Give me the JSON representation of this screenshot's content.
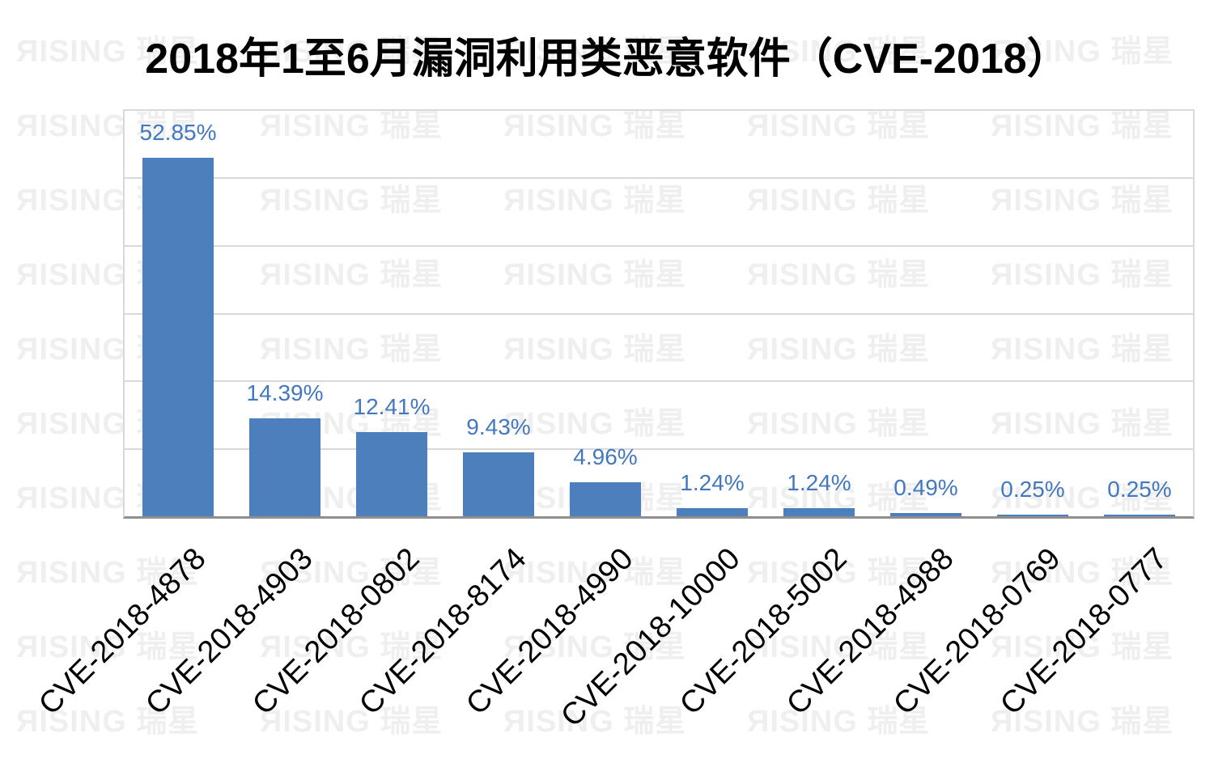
{
  "title": "2018年1至6月漏洞利用类恶意软件（CVE-2018）",
  "watermark": {
    "text": "ЯISING 瑞星",
    "color": "#efefef"
  },
  "chart_data": {
    "type": "bar",
    "title": "2018年1至6月漏洞利用类恶意软件（CVE-2018）",
    "categories": [
      "CVE-2018-4878",
      "CVE-2018-4903",
      "CVE-2018-0802",
      "CVE-2018-8174",
      "CVE-2018-4990",
      "CVE-2018-10000",
      "CVE-2018-5002",
      "CVE-2018-4988",
      "CVE-2018-0769",
      "CVE-2018-0777"
    ],
    "values": [
      52.85,
      14.39,
      12.41,
      9.43,
      4.96,
      1.24,
      1.24,
      0.49,
      0.25,
      0.25
    ],
    "data_labels": [
      "52.85%",
      "14.39%",
      "12.41%",
      "9.43%",
      "4.96%",
      "1.24%",
      "1.24%",
      "0.49%",
      "0.25%",
      "0.25%"
    ],
    "xlabel": "",
    "ylabel": "",
    "ylim": [
      0,
      60
    ],
    "gridline_interval": 10,
    "grid": true,
    "legend": "none",
    "y_axis_tick_labels_visible": false,
    "x_label_rotation_deg": 45,
    "bar_color": "#4D7FBD",
    "label_color": "#4478BE",
    "gridline_color": "#d9d9d9",
    "axis_line_color": "#8f8f8f"
  }
}
